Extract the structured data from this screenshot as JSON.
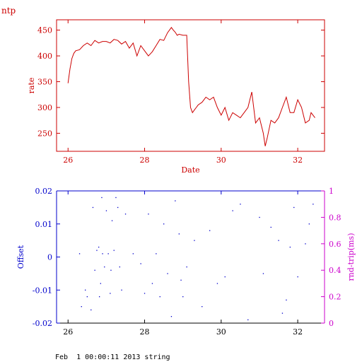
{
  "app": {
    "corner_label": "ntp",
    "footer": "Feb  1 00:00:11 2013 string"
  },
  "colors": {
    "rate": "#cc0000",
    "offset": "#0000cc",
    "rtt": "#cc00cc",
    "date_axis": "#000000"
  },
  "chart_data": [
    {
      "type": "line",
      "xlabel": "Date",
      "ylabel": "rate",
      "xlim": [
        25.7,
        32.7
      ],
      "ylim": [
        215,
        470
      ],
      "xticks": [
        26,
        28,
        30,
        32
      ],
      "yticks": [
        250,
        300,
        350,
        400,
        450
      ],
      "grid": false,
      "series": [
        {
          "x": [
            26.0,
            26.05,
            26.1,
            26.15,
            26.2,
            26.3,
            26.4,
            26.5,
            26.6,
            26.7,
            26.8,
            26.9,
            27.0,
            27.1,
            27.2,
            27.3,
            27.4,
            27.5,
            27.6,
            27.7,
            27.8,
            27.9,
            28.0,
            28.1,
            28.2,
            28.3,
            28.4,
            28.5,
            28.6,
            28.7,
            28.75,
            28.8,
            28.85,
            28.9,
            29.0,
            29.1,
            29.15,
            29.2,
            29.25,
            29.3,
            29.35,
            29.4,
            29.5,
            29.6,
            29.7,
            29.8,
            29.9,
            30.0,
            30.1,
            30.2,
            30.3,
            30.4,
            30.5,
            30.6,
            30.7,
            30.8,
            30.9,
            31.0,
            31.1,
            31.15,
            31.2,
            31.3,
            31.4,
            31.5,
            31.6,
            31.7,
            31.8,
            31.9,
            32.0,
            32.1,
            32.2,
            32.3,
            32.35,
            32.45
          ],
          "y": [
            347,
            375,
            395,
            405,
            410,
            412,
            420,
            425,
            420,
            430,
            425,
            428,
            428,
            425,
            432,
            430,
            423,
            428,
            415,
            425,
            400,
            420,
            410,
            400,
            408,
            420,
            432,
            430,
            445,
            455,
            450,
            446,
            440,
            442,
            440,
            440,
            350,
            300,
            290,
            295,
            300,
            305,
            310,
            320,
            315,
            320,
            300,
            285,
            300,
            275,
            290,
            285,
            280,
            290,
            300,
            330,
            270,
            280,
            250,
            225,
            240,
            275,
            270,
            280,
            300,
            320,
            290,
            290,
            315,
            300,
            270,
            275,
            290,
            280
          ]
        }
      ]
    },
    {
      "type": "scatter",
      "xlim": [
        25.7,
        32.7
      ],
      "ylim": [
        -0.02,
        0.02
      ],
      "y2lim": [
        0,
        1
      ],
      "xticks": [
        26,
        28,
        30,
        32
      ],
      "yticks": [
        -0.02,
        -0.01,
        0,
        0.01,
        0.02
      ],
      "y2ticks": [
        0,
        0.2,
        0.4,
        0.6,
        0.8,
        1
      ],
      "ylabel": "Offset",
      "y2label": "rnd-trip(ms)",
      "grid": false,
      "series": [
        {
          "x": [
            26.3,
            26.35,
            26.45,
            26.5,
            26.6,
            26.65,
            26.7,
            26.75,
            26.8,
            26.82,
            26.85,
            26.88,
            26.9,
            26.95,
            27.0,
            27.05,
            27.1,
            27.12,
            27.15,
            27.2,
            27.25,
            27.3,
            27.35,
            27.4,
            27.5,
            27.7,
            27.9,
            28.0,
            28.1,
            28.2,
            28.3,
            28.4,
            28.5,
            28.6,
            28.7,
            28.8,
            28.9,
            28.95,
            29.0,
            29.1,
            29.3,
            29.5,
            29.7,
            29.9,
            30.1,
            30.3,
            30.5,
            30.7,
            31.0,
            31.1,
            31.3,
            31.5,
            31.6,
            31.7,
            31.8,
            31.9,
            32.0,
            32.2,
            32.3,
            32.4
          ],
          "y": [
            0.001,
            -0.015,
            -0.01,
            -0.012,
            -0.016,
            0.015,
            -0.004,
            0.002,
            0.003,
            -0.012,
            -0.008,
            0.018,
            0.001,
            -0.003,
            0.014,
            0.001,
            -0.011,
            -0.004,
            0.011,
            0.002,
            0.018,
            0.015,
            -0.003,
            -0.01,
            0.013,
            0.001,
            -0.002,
            -0.011,
            0.013,
            -0.008,
            0.001,
            -0.012,
            0.01,
            -0.005,
            -0.018,
            0.017,
            0.007,
            -0.007,
            -0.012,
            -0.003,
            0.005,
            -0.015,
            0.008,
            -0.008,
            -0.006,
            0.014,
            0.016,
            -0.019,
            0.012,
            -0.005,
            0.009,
            0.005,
            -0.017,
            -0.013,
            0.003,
            0.015,
            -0.006,
            0.004,
            0.01,
            0.016
          ]
        }
      ]
    }
  ]
}
